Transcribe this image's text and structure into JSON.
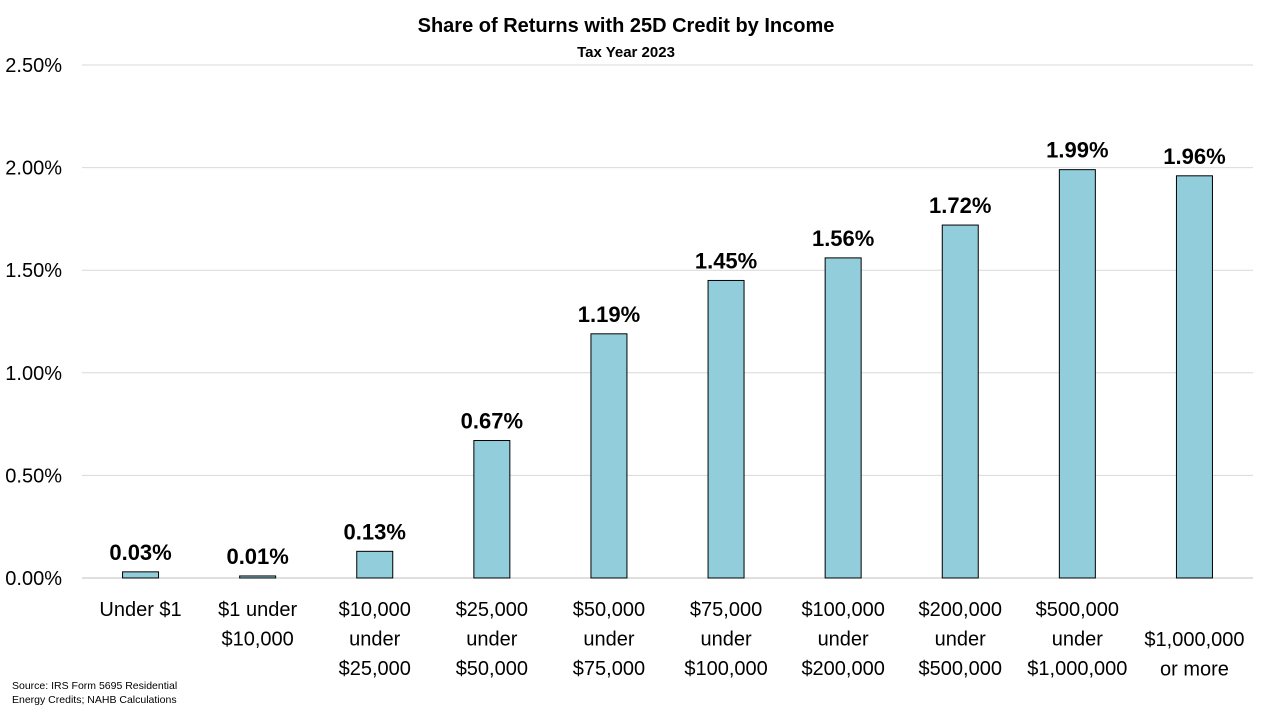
{
  "chart_data": {
    "type": "bar",
    "title": "Share of Returns with 25D Credit by Income",
    "subtitle": "Tax Year 2023",
    "categories": [
      [
        "Under $1"
      ],
      [
        "$1 under",
        "$10,000"
      ],
      [
        "$10,000",
        "under",
        "$25,000"
      ],
      [
        "$25,000",
        "under",
        "$50,000"
      ],
      [
        "$50,000",
        "under",
        "$75,000"
      ],
      [
        "$75,000",
        "under",
        "$100,000"
      ],
      [
        "$100,000",
        "under",
        "$200,000"
      ],
      [
        "$200,000",
        "under",
        "$500,000"
      ],
      [
        "$500,000",
        "under",
        "$1,000,000"
      ],
      [
        "$1,000,000",
        "or more"
      ]
    ],
    "values": [
      0.03,
      0.01,
      0.13,
      0.67,
      1.19,
      1.45,
      1.56,
      1.72,
      1.99,
      1.96
    ],
    "data_labels": [
      "0.03%",
      "0.01%",
      "0.13%",
      "0.67%",
      "1.19%",
      "1.45%",
      "1.56%",
      "1.72%",
      "1.99%",
      "1.96%"
    ],
    "ytick_labels": [
      "0.00%",
      "0.50%",
      "1.00%",
      "1.50%",
      "2.00%",
      "2.50%"
    ],
    "yticks": [
      0,
      0.5,
      1.0,
      1.5,
      2.0,
      2.5
    ],
    "ylim": [
      0,
      2.5
    ],
    "xlabel": "",
    "ylabel": "",
    "grid": true,
    "legend": "none",
    "bar_color": "#92CDDC",
    "bar_edge_color": "#000000",
    "grid_color": "#D9D9D9"
  },
  "source_note": "Source: IRS Form 5695 Residential Energy Credits; NAHB Calculations"
}
